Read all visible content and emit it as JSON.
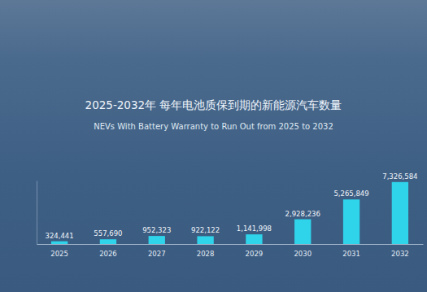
{
  "chart_data": {
    "type": "bar",
    "title": "2025-2032年 每年电池质保到期的新能源汽车数量",
    "subtitle": "NEVs With Battery Warranty to Run Out from 2025 to 2032",
    "categories": [
      "2025",
      "2026",
      "2027",
      "2028",
      "2029",
      "2030",
      "2031",
      "2032"
    ],
    "values": [
      324441,
      557690,
      952323,
      922122,
      1141998,
      2928236,
      5265849,
      7326584
    ],
    "value_labels": [
      "324,441",
      "557,690",
      "952,323",
      "922,122",
      "1,141,998",
      "2,928,236",
      "5,265,849",
      "7,326,584"
    ],
    "color": "#2fd3ea",
    "ylim": [
      0,
      7500000
    ],
    "yticks": [],
    "grid": false,
    "data_labels": true,
    "tick_labels": "x"
  }
}
